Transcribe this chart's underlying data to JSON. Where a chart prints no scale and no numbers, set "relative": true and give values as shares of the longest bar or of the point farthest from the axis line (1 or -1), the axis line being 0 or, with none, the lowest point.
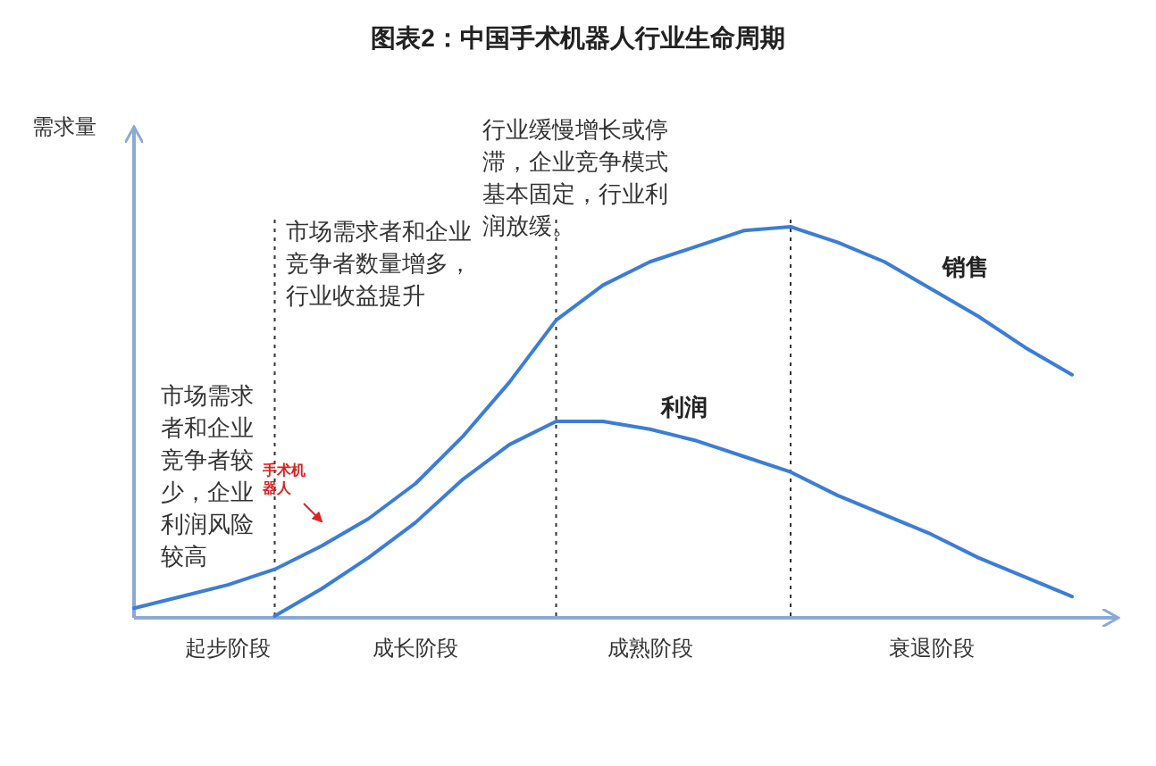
{
  "chart_data": {
    "type": "line",
    "title": "图表2：中国手术机器人行业生命周期",
    "ylabel": "需求量",
    "relative": true,
    "grid": "x",
    "marker": "none",
    "line_style": "solid",
    "categories": [
      null,
      null,
      "起步阶段",
      null,
      null,
      null,
      "成长阶段",
      null,
      null,
      null,
      null,
      "成熟阶段",
      null,
      null,
      null,
      null,
      null,
      "衰退阶段",
      null,
      null,
      null
    ],
    "series": [
      {
        "name": "销售",
        "color": "#3b7dd8",
        "values": [
          0.02,
          0.05,
          0.08,
          0.12,
          0.18,
          0.25,
          0.34,
          0.46,
          0.6,
          0.76,
          0.85,
          0.91,
          0.95,
          0.99,
          1.0,
          0.96,
          0.91,
          0.84,
          0.77,
          0.69,
          0.62
        ]
      },
      {
        "name": "利润",
        "color": "#3b7dd8",
        "values": [
          null,
          null,
          null,
          0,
          0.07,
          0.15,
          0.24,
          0.35,
          0.44,
          0.5,
          0.5,
          0.48,
          0.45,
          0.41,
          0.37,
          0.31,
          0.26,
          0.21,
          0.15,
          0.1,
          0.05
        ]
      }
    ],
    "annotations": [
      "市场需求者和企业竞争者较少，企业利润风险较高",
      "市场需求者和企业竞争者数量增多，行业收益提升",
      "行业缓慢增长或停滞，企业竞争模式基本固定，行业利润放缓。",
      "手术机器人"
    ]
  }
}
